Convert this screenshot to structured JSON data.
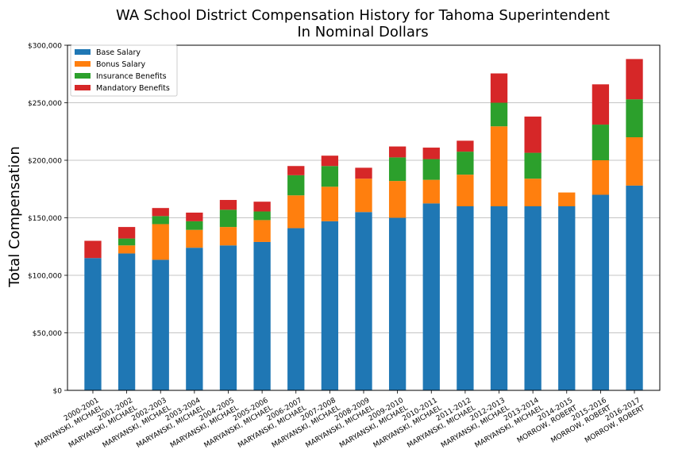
{
  "chart_data": {
    "type": "bar",
    "stacked": true,
    "title": "WA School District Compensation History for Tahoma Superintendent",
    "subtitle": "In Nominal Dollars",
    "xlabel": "",
    "ylabel": "Total Compensation",
    "ylim": [
      0,
      300000
    ],
    "yticks": [
      "$0",
      "$50,000",
      "$100,000",
      "$150,000",
      "$200,000",
      "$250,000",
      "$300,000"
    ],
    "ytick_values": [
      0,
      50000,
      100000,
      150000,
      200000,
      250000,
      300000
    ],
    "grid": true,
    "legend_position": "top-left",
    "categories": [
      {
        "year": "2000-2001",
        "name": "MARYANSKI, MICHAEL"
      },
      {
        "year": "2001-2002",
        "name": "MARYANSKI, MICHAEL"
      },
      {
        "year": "2002-2003",
        "name": "MARYANSKI, MICHAEL"
      },
      {
        "year": "2003-2004",
        "name": "MARYANSKI, MICHAEL"
      },
      {
        "year": "2004-2005",
        "name": "MARYANSKI, MICHAEL"
      },
      {
        "year": "2005-2006",
        "name": "MARYANSKI, MICHAEL"
      },
      {
        "year": "2006-2007",
        "name": "MARYANSKI, MICHAEL"
      },
      {
        "year": "2007-2008",
        "name": "MARYANSKI, MICHAEL"
      },
      {
        "year": "2008-2009",
        "name": "MARYANSKI, MICHAEL"
      },
      {
        "year": "2009-2010",
        "name": "MARYANSKI, MICHAEL"
      },
      {
        "year": "2010-2011",
        "name": "MARYANSKI, MICHAEL"
      },
      {
        "year": "2011-2012",
        "name": "MARYANSKI, MICHAEL"
      },
      {
        "year": "2012-2013",
        "name": "MARYANSKI, MICHAEL"
      },
      {
        "year": "2013-2014",
        "name": "MARYANSKI, MICHAEL"
      },
      {
        "year": "2014-2015",
        "name": "MORROW, ROBERT"
      },
      {
        "year": "2015-2016",
        "name": "MORROW, ROBERT"
      },
      {
        "year": "2016-2017",
        "name": "MORROW, ROBERT"
      }
    ],
    "series": [
      {
        "name": "Base Salary",
        "color": "#1f77b4",
        "values": [
          115000,
          119000,
          113500,
          124000,
          126000,
          129000,
          141000,
          147000,
          155000,
          150000,
          162500,
          160000,
          160000,
          160000,
          160000,
          170000,
          178000
        ]
      },
      {
        "name": "Bonus Salary",
        "color": "#ff7f0e",
        "values": [
          0,
          7000,
          31000,
          15500,
          16000,
          19000,
          28500,
          30000,
          29000,
          32000,
          20500,
          27500,
          69500,
          24000,
          12000,
          30000,
          42000
        ]
      },
      {
        "name": "Insurance Benefits",
        "color": "#2ca02c",
        "values": [
          0,
          6000,
          7000,
          7500,
          15000,
          7500,
          17500,
          18000,
          0,
          20500,
          18000,
          20000,
          20500,
          22500,
          0,
          31000,
          33000
        ]
      },
      {
        "name": "Mandatory Benefits",
        "color": "#d62728",
        "values": [
          15000,
          10000,
          7000,
          7500,
          8500,
          8500,
          8000,
          9000,
          9500,
          9500,
          10000,
          9500,
          25500,
          31500,
          0,
          35000,
          35000
        ]
      }
    ]
  }
}
